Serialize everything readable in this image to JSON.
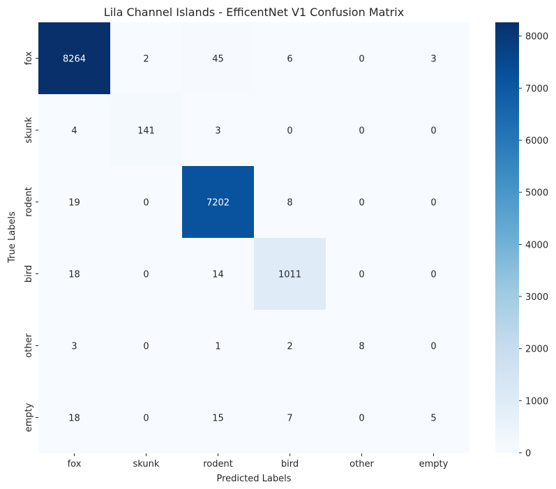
{
  "chart_data": {
    "type": "heatmap",
    "title": "Lila Channel Islands - EfficentNet V1 Confusion Matrix",
    "xlabel": "Predicted Labels",
    "ylabel": "True Labels",
    "x_categories": [
      "fox",
      "skunk",
      "rodent",
      "bird",
      "other",
      "empty"
    ],
    "y_categories": [
      "fox",
      "skunk",
      "rodent",
      "bird",
      "other",
      "empty"
    ],
    "values": [
      [
        8264,
        2,
        45,
        6,
        0,
        3
      ],
      [
        4,
        141,
        3,
        0,
        0,
        0
      ],
      [
        19,
        0,
        7202,
        8,
        0,
        0
      ],
      [
        18,
        0,
        14,
        1011,
        0,
        0
      ],
      [
        3,
        0,
        1,
        2,
        8,
        0
      ],
      [
        18,
        0,
        15,
        7,
        0,
        5
      ]
    ],
    "colorbar": {
      "min": 0,
      "max": 8264,
      "ticks": [
        0,
        1000,
        2000,
        3000,
        4000,
        5000,
        6000,
        7000,
        8000
      ],
      "colormap": "Blues"
    }
  }
}
